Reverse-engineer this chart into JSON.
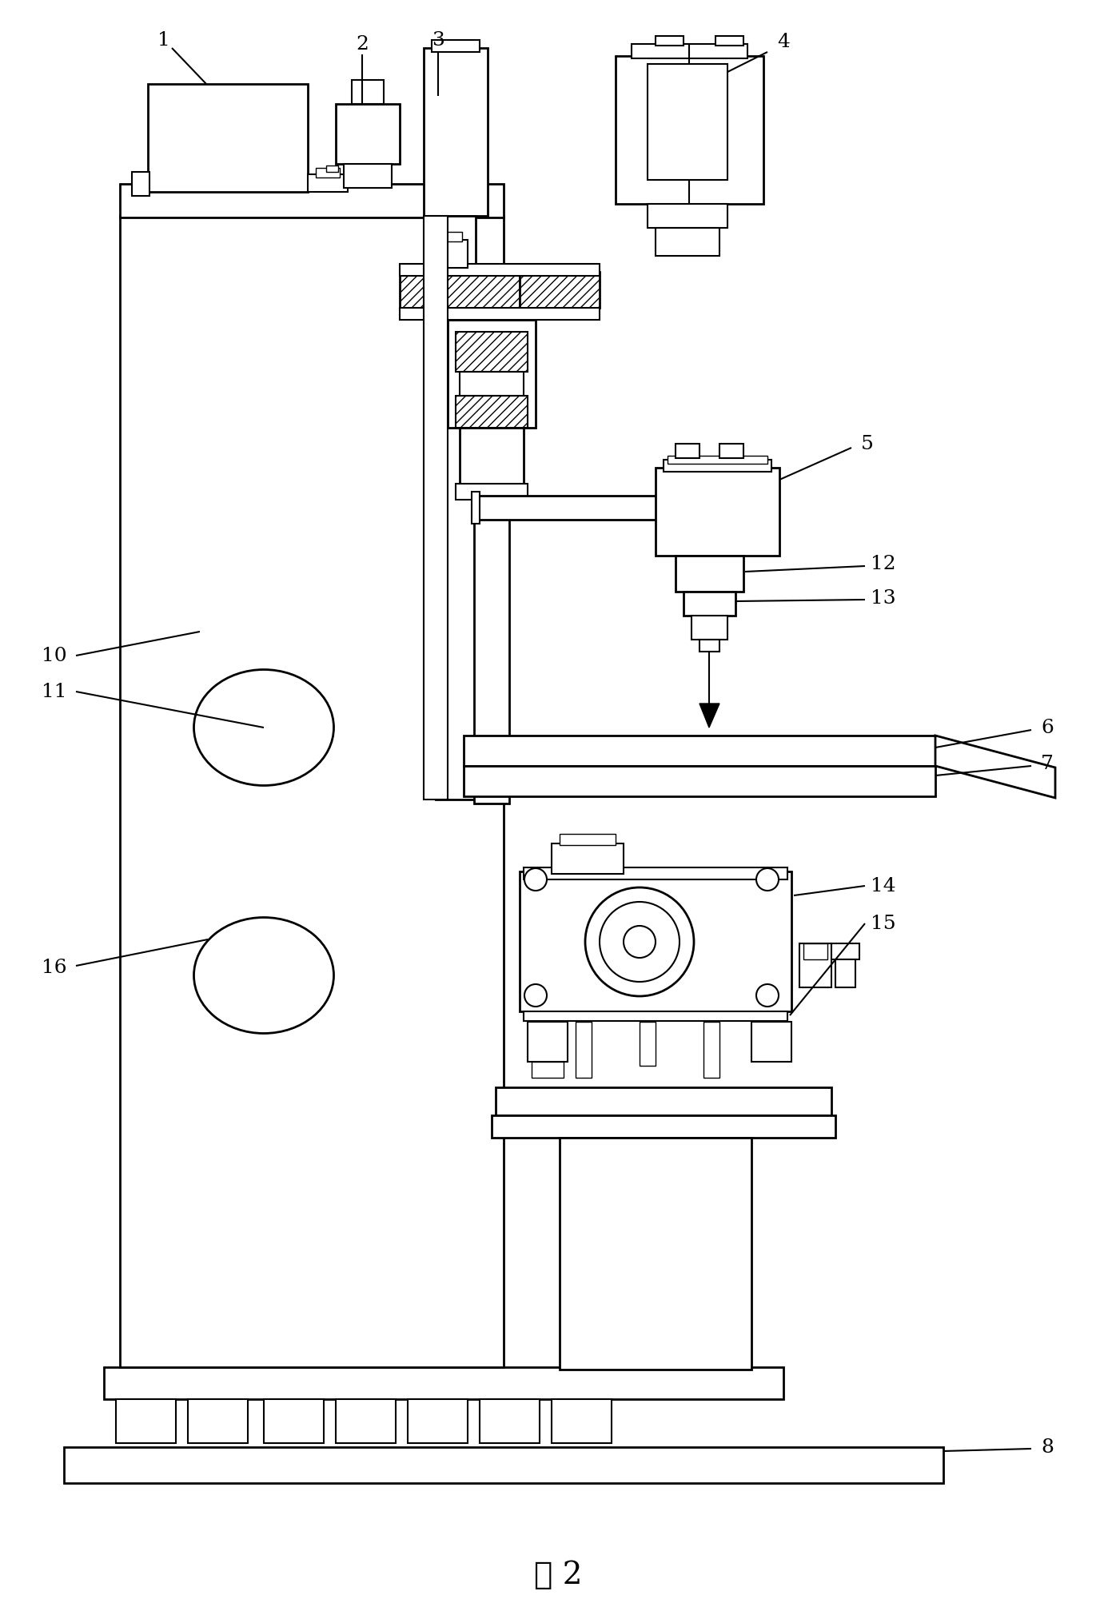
{
  "figure_label": "图 2",
  "bg_color": "#ffffff",
  "line_color": "#000000",
  "fig_size": [
    13.96,
    20.1
  ],
  "dpi": 100
}
